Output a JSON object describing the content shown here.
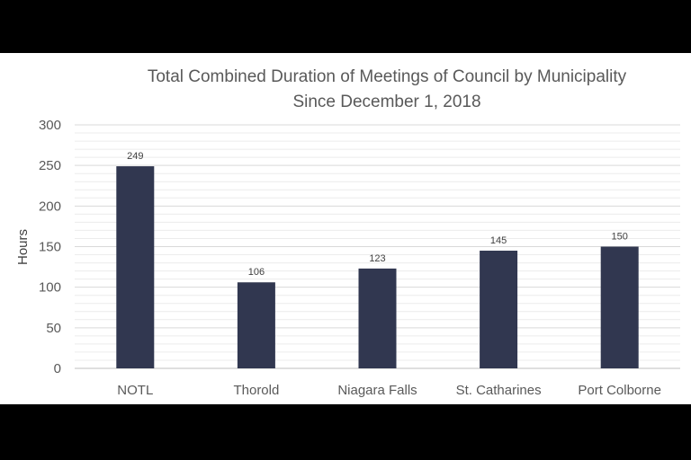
{
  "chart_data": {
    "type": "bar",
    "title": "Total Combined Duration of Meetings of Council by Municipality",
    "subtitle": "Since December 1, 2018",
    "xlabel": "",
    "ylabel": "Hours",
    "categories": [
      "NOTL",
      "Thorold",
      "Niagara Falls",
      "St. Catharines",
      "Port Colborne"
    ],
    "values": [
      249,
      106,
      123,
      145,
      150
    ],
    "data_labels": [
      "249",
      "106",
      "123",
      "145",
      "150"
    ],
    "y_ticks": [
      "0",
      "50",
      "100",
      "150",
      "200",
      "250",
      "300"
    ],
    "ylim": [
      0,
      300
    ],
    "grid": true,
    "legend": "none",
    "colors": {
      "bar": "#313750",
      "major_grid": "#d9d9d9",
      "minor_grid": "#ececec",
      "text": "#595959",
      "axis": "#bfbfbf"
    }
  }
}
